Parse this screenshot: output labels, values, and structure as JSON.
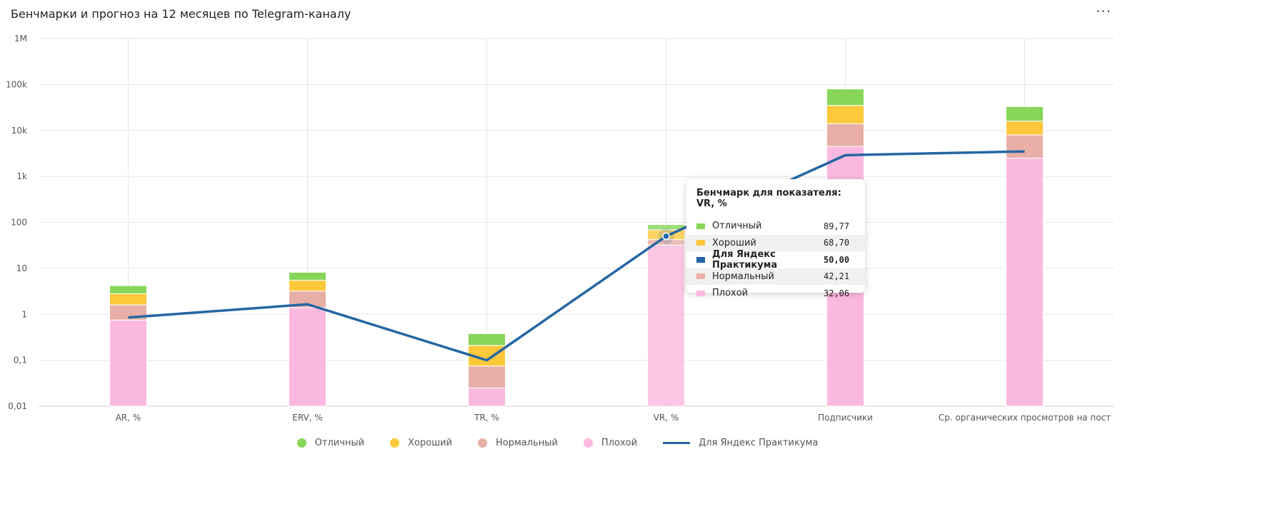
{
  "header": {
    "title": "Бенчмарки и прогноз на 12 месяцев по Telegram-каналу",
    "menu_label": "···"
  },
  "colors": {
    "excellent": "#87d65a",
    "good": "#fdc93b",
    "normal": "#e8afa6",
    "bad": "#fcb9df",
    "line": "#2566a3",
    "grid": "#e6e6e6",
    "axis_text": "#555555"
  },
  "chart_data": {
    "type": "bar",
    "stacked": true,
    "y_scale": "log",
    "ylim": [
      0.01,
      1000000
    ],
    "y_ticks": [
      {
        "value": 0.01,
        "label": "0,01"
      },
      {
        "value": 0.1,
        "label": "0,1"
      },
      {
        "value": 1,
        "label": "1"
      },
      {
        "value": 10,
        "label": "10"
      },
      {
        "value": 100,
        "label": "100"
      },
      {
        "value": 1000,
        "label": "1k"
      },
      {
        "value": 10000,
        "label": "10k"
      },
      {
        "value": 100000,
        "label": "100k"
      },
      {
        "value": 1000000,
        "label": "1M"
      }
    ],
    "categories": [
      "AR, %",
      "ERV, %",
      "TR, %",
      "VR, %",
      "Подписчики",
      "Ср. органических просмотров на пост"
    ],
    "series": [
      {
        "name": "Плохой",
        "key": "bad",
        "values": [
          0.75,
          1.4,
          0.025,
          32.06,
          4500,
          2500
        ]
      },
      {
        "name": "Нормальный",
        "key": "normal",
        "values": [
          1.6,
          3.2,
          0.075,
          42.21,
          14000,
          8000
        ]
      },
      {
        "name": "Хороший",
        "key": "good",
        "values": [
          2.8,
          5.5,
          0.21,
          68.7,
          35000,
          16000
        ]
      },
      {
        "name": "Отличный",
        "key": "excellent",
        "values": [
          4.2,
          8.2,
          0.38,
          89.77,
          80000,
          33000
        ]
      }
    ],
    "line_series": {
      "name": "Для Яндекс Практикума",
      "values": [
        0.85,
        1.65,
        0.1,
        50.0,
        2900,
        3500
      ]
    },
    "legend": {
      "position": "bottom",
      "items": [
        {
          "label": "Отличный",
          "key": "excellent",
          "shape": "dot"
        },
        {
          "label": "Хороший",
          "key": "good",
          "shape": "dot"
        },
        {
          "label": "Нормальный",
          "key": "normal",
          "shape": "dot"
        },
        {
          "label": "Плохой",
          "key": "bad",
          "shape": "dot"
        },
        {
          "label": "Для Яндекс Практикума",
          "key": "line",
          "shape": "line"
        }
      ]
    },
    "highlighted_category_index": 3,
    "grid": true
  },
  "tooltip": {
    "title": "Бенчмарк для показателя: VR, %",
    "rows": [
      {
        "label": "Отличный",
        "value": "89,77",
        "key": "excellent"
      },
      {
        "label": "Хороший",
        "value": "68,70",
        "key": "good"
      },
      {
        "label": "Для Яндекс Практикума",
        "value": "50,00",
        "key": "line"
      },
      {
        "label": "Нормальный",
        "value": "42,21",
        "key": "normal"
      },
      {
        "label": "Плохой",
        "value": "32,06",
        "key": "bad"
      }
    ]
  }
}
